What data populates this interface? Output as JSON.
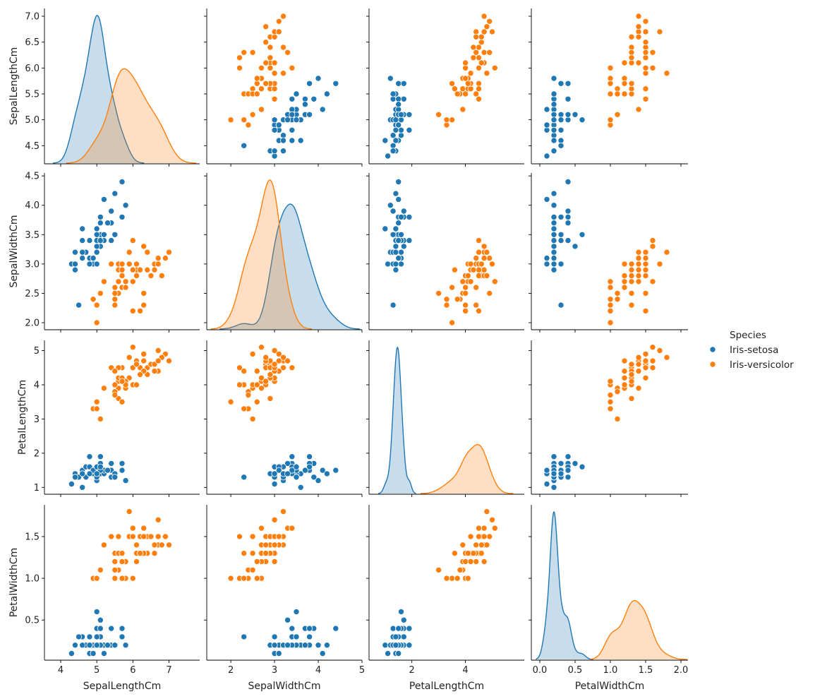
{
  "chart_data": {
    "type": "scatter",
    "title": "",
    "variables": [
      "SepalLengthCm",
      "SepalWidthCm",
      "PetalLengthCm",
      "PetalWidthCm"
    ],
    "axes": {
      "SepalLengthCm": {
        "lim": [
          3.55,
          7.85
        ],
        "ticks": [
          4,
          5,
          6,
          7
        ],
        "row_ticks": [
          "4.5",
          "5.0",
          "5.5",
          "6.0",
          "6.5",
          "7.0"
        ]
      },
      "SepalWidthCm": {
        "lim": [
          1.45,
          5.0
        ],
        "ticks": [
          2,
          3,
          4,
          5
        ],
        "row_ticks": [
          "2.0",
          "2.5",
          "3.0",
          "3.5",
          "4.0",
          "4.5"
        ]
      },
      "PetalLengthCm": {
        "lim": [
          0.4,
          6.2
        ],
        "ticks": [
          2,
          4
        ],
        "row_ticks": [
          "1",
          "2",
          "3",
          "4",
          "5"
        ]
      },
      "PetalWidthCm": {
        "lim": [
          -0.12,
          2.1
        ],
        "ticks": [
          "0.0",
          "0.5",
          "1.0",
          "1.5",
          "2.0"
        ],
        "row_ticks": [
          "0.5",
          "1.0",
          "1.5"
        ]
      }
    },
    "row_limits": {
      "SepalLengthCm": [
        4.15,
        7.15
      ],
      "SepalWidthCm": [
        1.88,
        4.55
      ],
      "PetalLengthCm": [
        0.8,
        5.3
      ],
      "PetalWidthCm": [
        0.02,
        1.88
      ]
    },
    "legend": {
      "title": "Species",
      "placement": "right-center",
      "entries": [
        {
          "name": "Iris-setosa",
          "color": "#1f77b4"
        },
        {
          "name": "Iris-versicolor",
          "color": "#ff7f0e"
        }
      ]
    },
    "series": [
      {
        "name": "Iris-setosa",
        "color": "#1f77b4",
        "points": [
          [
            5.1,
            3.5,
            1.4,
            0.2
          ],
          [
            4.9,
            3.0,
            1.4,
            0.2
          ],
          [
            4.7,
            3.2,
            1.3,
            0.2
          ],
          [
            4.6,
            3.1,
            1.5,
            0.2
          ],
          [
            5.0,
            3.6,
            1.4,
            0.2
          ],
          [
            5.4,
            3.9,
            1.7,
            0.4
          ],
          [
            4.6,
            3.4,
            1.4,
            0.3
          ],
          [
            5.0,
            3.4,
            1.5,
            0.2
          ],
          [
            4.4,
            2.9,
            1.4,
            0.2
          ],
          [
            4.9,
            3.1,
            1.5,
            0.1
          ],
          [
            5.4,
            3.7,
            1.5,
            0.2
          ],
          [
            4.8,
            3.4,
            1.6,
            0.2
          ],
          [
            4.8,
            3.0,
            1.4,
            0.1
          ],
          [
            4.3,
            3.0,
            1.1,
            0.1
          ],
          [
            5.8,
            4.0,
            1.2,
            0.2
          ],
          [
            5.7,
            4.4,
            1.5,
            0.4
          ],
          [
            5.4,
            3.9,
            1.3,
            0.4
          ],
          [
            5.1,
            3.5,
            1.4,
            0.3
          ],
          [
            5.7,
            3.8,
            1.7,
            0.3
          ],
          [
            5.1,
            3.8,
            1.5,
            0.3
          ],
          [
            5.4,
            3.4,
            1.7,
            0.2
          ],
          [
            5.1,
            3.7,
            1.5,
            0.4
          ],
          [
            4.6,
            3.6,
            1.0,
            0.2
          ],
          [
            5.1,
            3.3,
            1.7,
            0.5
          ],
          [
            4.8,
            3.4,
            1.9,
            0.2
          ],
          [
            5.0,
            3.0,
            1.6,
            0.2
          ],
          [
            5.0,
            3.4,
            1.6,
            0.4
          ],
          [
            5.2,
            3.5,
            1.5,
            0.2
          ],
          [
            5.2,
            3.4,
            1.4,
            0.2
          ],
          [
            4.7,
            3.2,
            1.6,
            0.2
          ],
          [
            4.8,
            3.1,
            1.6,
            0.2
          ],
          [
            5.4,
            3.4,
            1.5,
            0.4
          ],
          [
            5.2,
            4.1,
            1.5,
            0.1
          ],
          [
            5.5,
            4.2,
            1.4,
            0.2
          ],
          [
            4.9,
            3.1,
            1.5,
            0.1
          ],
          [
            5.0,
            3.2,
            1.2,
            0.2
          ],
          [
            5.5,
            3.5,
            1.3,
            0.2
          ],
          [
            4.9,
            3.1,
            1.5,
            0.1
          ],
          [
            4.4,
            3.0,
            1.3,
            0.2
          ],
          [
            5.1,
            3.4,
            1.5,
            0.2
          ],
          [
            5.0,
            3.5,
            1.3,
            0.3
          ],
          [
            4.5,
            2.3,
            1.3,
            0.3
          ],
          [
            4.4,
            3.2,
            1.3,
            0.2
          ],
          [
            5.0,
            3.5,
            1.6,
            0.6
          ],
          [
            5.1,
            3.8,
            1.9,
            0.4
          ],
          [
            4.8,
            3.0,
            1.4,
            0.3
          ],
          [
            5.1,
            3.8,
            1.6,
            0.2
          ],
          [
            4.6,
            3.2,
            1.4,
            0.2
          ],
          [
            5.3,
            3.7,
            1.5,
            0.2
          ],
          [
            5.0,
            3.3,
            1.4,
            0.2
          ]
        ]
      },
      {
        "name": "Iris-versicolor",
        "color": "#ff7f0e",
        "points": [
          [
            7.0,
            3.2,
            4.7,
            1.4
          ],
          [
            6.4,
            3.2,
            4.5,
            1.5
          ],
          [
            6.9,
            3.1,
            4.9,
            1.5
          ],
          [
            5.5,
            2.3,
            4.0,
            1.3
          ],
          [
            6.5,
            2.8,
            4.6,
            1.5
          ],
          [
            5.7,
            2.8,
            4.5,
            1.3
          ],
          [
            6.3,
            3.3,
            4.7,
            1.6
          ],
          [
            4.9,
            2.4,
            3.3,
            1.0
          ],
          [
            6.6,
            2.9,
            4.6,
            1.3
          ],
          [
            5.2,
            2.7,
            3.9,
            1.4
          ],
          [
            5.0,
            2.0,
            3.5,
            1.0
          ],
          [
            5.9,
            3.0,
            4.2,
            1.5
          ],
          [
            6.0,
            2.2,
            4.0,
            1.0
          ],
          [
            6.1,
            2.9,
            4.7,
            1.4
          ],
          [
            5.6,
            2.9,
            3.6,
            1.3
          ],
          [
            6.7,
            3.1,
            4.4,
            1.4
          ],
          [
            5.6,
            3.0,
            4.5,
            1.5
          ],
          [
            5.8,
            2.7,
            4.1,
            1.0
          ],
          [
            6.2,
            2.2,
            4.5,
            1.5
          ],
          [
            5.6,
            2.5,
            3.9,
            1.1
          ],
          [
            5.9,
            3.2,
            4.8,
            1.8
          ],
          [
            6.1,
            2.8,
            4.0,
            1.3
          ],
          [
            6.3,
            2.5,
            4.9,
            1.5
          ],
          [
            6.1,
            2.8,
            4.7,
            1.2
          ],
          [
            6.4,
            2.9,
            4.3,
            1.3
          ],
          [
            6.6,
            3.0,
            4.4,
            1.4
          ],
          [
            6.8,
            2.8,
            4.8,
            1.4
          ],
          [
            6.7,
            3.0,
            5.0,
            1.7
          ],
          [
            6.0,
            2.9,
            4.5,
            1.5
          ],
          [
            5.7,
            2.6,
            3.5,
            1.0
          ],
          [
            5.5,
            2.4,
            3.8,
            1.1
          ],
          [
            5.5,
            2.4,
            3.7,
            1.0
          ],
          [
            5.8,
            2.7,
            3.9,
            1.2
          ],
          [
            6.0,
            2.7,
            5.1,
            1.6
          ],
          [
            5.4,
            3.0,
            4.5,
            1.5
          ],
          [
            6.0,
            3.4,
            4.5,
            1.6
          ],
          [
            6.7,
            3.1,
            4.7,
            1.5
          ],
          [
            6.3,
            2.3,
            4.4,
            1.3
          ],
          [
            5.6,
            3.0,
            4.1,
            1.3
          ],
          [
            5.5,
            2.5,
            4.0,
            1.3
          ],
          [
            5.5,
            2.6,
            4.4,
            1.2
          ],
          [
            6.1,
            3.0,
            4.6,
            1.4
          ],
          [
            5.8,
            2.6,
            4.0,
            1.2
          ],
          [
            5.0,
            2.3,
            3.3,
            1.0
          ],
          [
            5.6,
            2.7,
            4.2,
            1.3
          ],
          [
            5.7,
            3.0,
            4.2,
            1.2
          ],
          [
            5.7,
            2.9,
            4.2,
            1.3
          ],
          [
            6.2,
            2.9,
            4.3,
            1.3
          ],
          [
            5.1,
            2.5,
            3.0,
            1.1
          ],
          [
            5.7,
            2.8,
            4.1,
            1.3
          ]
        ]
      }
    ]
  }
}
